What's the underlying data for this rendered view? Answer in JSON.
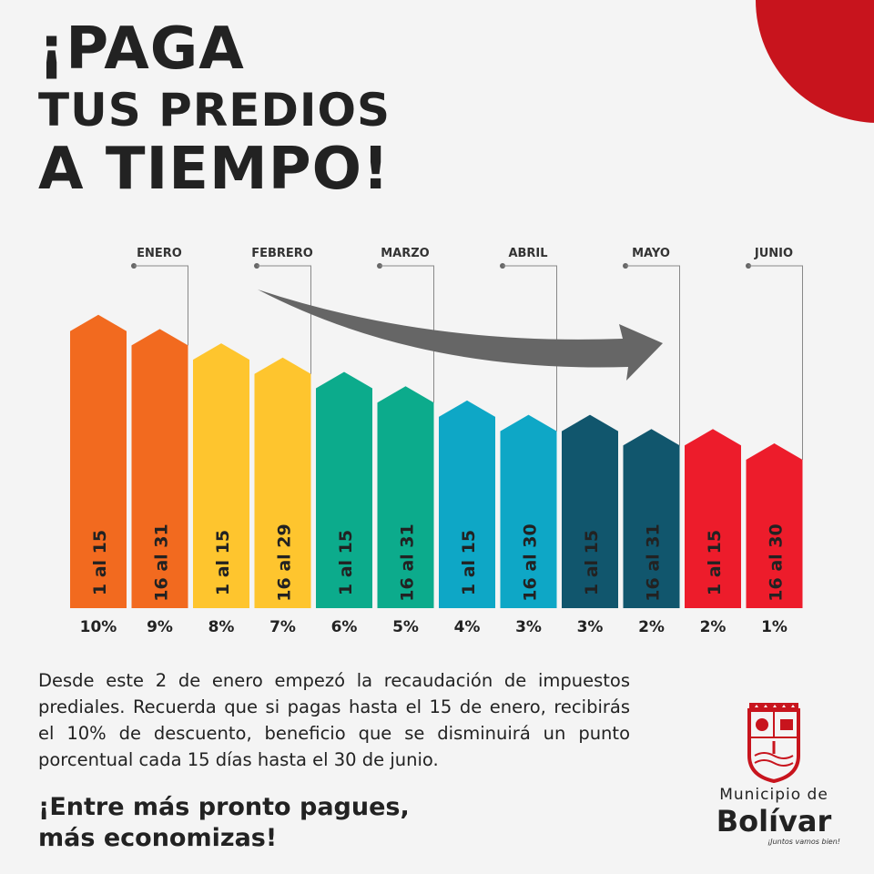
{
  "headline": {
    "line1": "¡PAGA",
    "line2": "TUS PREDIOS",
    "line3": "A TIEMPO!"
  },
  "chart_data": {
    "type": "bar",
    "months": [
      "ENERO",
      "FEBRERO",
      "MARZO",
      "ABRIL",
      "MAYO",
      "JUNIO"
    ],
    "categories": [
      "1 al 15",
      "16 al 31",
      "1 al 15",
      "16 al 29",
      "1 al 15",
      "16 al 31",
      "1 al 15",
      "16 al 30",
      "1 al 15",
      "16 al 31",
      "1 al 15",
      "16 al 30"
    ],
    "values": [
      10,
      9,
      8,
      7,
      6,
      5,
      4,
      3,
      3,
      2,
      2,
      1
    ],
    "value_labels": [
      "10%",
      "9%",
      "8%",
      "7%",
      "6%",
      "5%",
      "4%",
      "3%",
      "3%",
      "2%",
      "2%",
      "1%"
    ],
    "colors": [
      "#f26a1f",
      "#f26a1f",
      "#fec52e",
      "#fec52e",
      "#0cab8c",
      "#0cab8c",
      "#0ea7c6",
      "#0ea7c6",
      "#11566d",
      "#11566d",
      "#ed1c2b",
      "#ed1c2b"
    ],
    "arrow_color": "#666666"
  },
  "description": "Desde este 2 de enero empezó la recaudación de impuestos prediales. Recuerda que si pagas  hasta el 15 de enero, recibirás el 10% de descuento, beneficio que se disminuirá un punto porcentual cada 15 días hasta el 30 de junio.",
  "slogan": {
    "line1": "¡Entre más pronto pagues,",
    "line2": "más economizas!"
  },
  "logo": {
    "line1": "Municipio de",
    "line2": "Bolívar",
    "tagline": "¡Juntos vamos bien!"
  },
  "accent_color": "#c8141d"
}
